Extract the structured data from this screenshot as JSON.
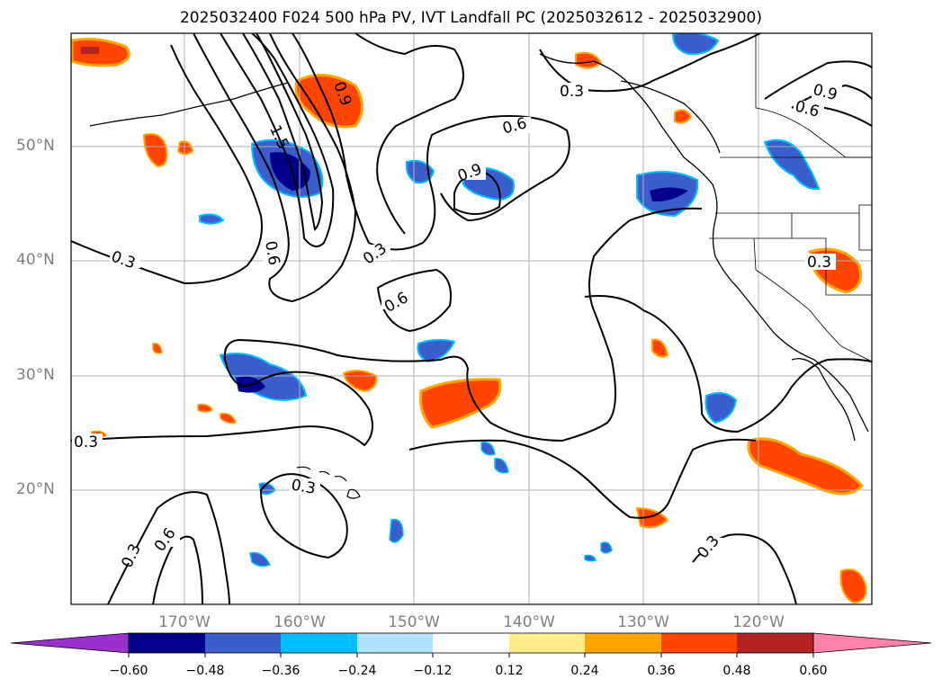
{
  "title": "2025032400 F024 500 hPa PV, IVT Landfall PC (2025032612 - 2025032900)",
  "lat_labels": [
    "50°N",
    "40°N",
    "30°N",
    "20°N"
  ],
  "lon_labels": [
    "170°W",
    "160°W",
    "150°W",
    "140°W",
    "130°W",
    "120°W"
  ],
  "contour_labels": [
    "0.3",
    "0.6",
    "0.9",
    "1.5"
  ],
  "colorbar": {
    "ticks": [
      "−0.60",
      "−0.48",
      "−0.36",
      "−0.24",
      "−0.12",
      "0.12",
      "0.24",
      "0.36",
      "0.48",
      "0.60"
    ],
    "colors": [
      "#9932cc",
      "#00008b",
      "#3a5fcd",
      "#00bfff",
      "#b0e2ff",
      "#ffffff",
      "#ffec8b",
      "#ffa500",
      "#ff4500",
      "#b22222",
      "#ff82ab"
    ]
  }
}
